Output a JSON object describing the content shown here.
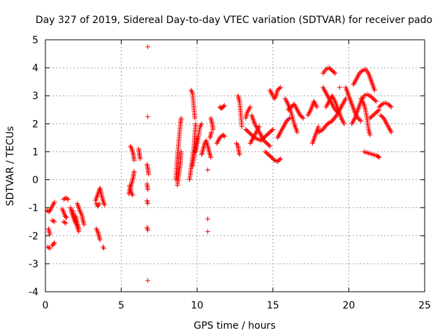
{
  "chart_data": {
    "type": "scatter",
    "title": "Day 327 of 2019, Sidereal Day-to-day VTEC variation (SDTVAR) for receiver pado",
    "xlabel": "GPS time / hours",
    "ylabel": "SDTVAR / TECUs",
    "xlim": [
      0,
      25
    ],
    "ylim": [
      -4,
      5
    ],
    "grid": true,
    "marker": "+",
    "marker_color": "#ff0000",
    "x_ticks": [
      {
        "value": 0,
        "label": "0"
      },
      {
        "value": 5,
        "label": "5"
      },
      {
        "value": 10,
        "label": "10"
      },
      {
        "value": 15,
        "label": "15"
      },
      {
        "value": 20,
        "label": "20"
      },
      {
        "value": 25,
        "label": "25"
      }
    ],
    "y_ticks": [
      {
        "value": -4,
        "label": "-4"
      },
      {
        "value": -3,
        "label": "-3"
      },
      {
        "value": -2,
        "label": "-2"
      },
      {
        "value": -1,
        "label": "-1"
      },
      {
        "value": 0,
        "label": "0"
      },
      {
        "value": 1,
        "label": "1"
      },
      {
        "value": 2,
        "label": "2"
      },
      {
        "value": 3,
        "label": "3"
      },
      {
        "value": 4,
        "label": "4"
      },
      {
        "value": 5,
        "label": "5"
      }
    ],
    "segments": [
      [
        [
          0.1,
          -1.1
        ],
        [
          0.25,
          -1.15
        ],
        [
          0.45,
          -0.95
        ],
        [
          0.6,
          -0.8
        ]
      ],
      [
        [
          0.2,
          -1.75
        ],
        [
          0.3,
          -1.95
        ]
      ],
      [
        [
          0.15,
          -2.4
        ],
        [
          0.3,
          -2.45
        ]
      ],
      [
        [
          0.45,
          -2.35
        ],
        [
          0.6,
          -2.25
        ]
      ],
      [
        [
          0.45,
          -1.45
        ],
        [
          0.6,
          -1.5
        ]
      ],
      [
        [
          1.1,
          -1.05
        ],
        [
          1.2,
          -1.15
        ],
        [
          1.3,
          -1.3
        ],
        [
          1.4,
          -1.35
        ]
      ],
      [
        [
          1.2,
          -0.7
        ],
        [
          1.35,
          -0.65
        ],
        [
          1.5,
          -0.7
        ]
      ],
      [
        [
          1.2,
          -1.5
        ],
        [
          1.35,
          -1.55
        ]
      ],
      [
        [
          1.65,
          -1.0
        ],
        [
          1.75,
          -1.2
        ],
        [
          1.85,
          -1.35
        ],
        [
          1.95,
          -1.5
        ],
        [
          2.05,
          -1.6
        ],
        [
          2.15,
          -1.75
        ],
        [
          2.2,
          -1.85
        ]
      ],
      [
        [
          1.8,
          -1.1
        ],
        [
          1.9,
          -1.3
        ],
        [
          2.0,
          -1.5
        ]
      ],
      [
        [
          2.1,
          -0.85
        ],
        [
          2.2,
          -1.0
        ],
        [
          2.3,
          -1.15
        ],
        [
          2.4,
          -1.25
        ],
        [
          2.45,
          -1.4
        ],
        [
          2.55,
          -1.6
        ]
      ],
      [
        [
          2.0,
          -1.3
        ],
        [
          2.1,
          -1.55
        ],
        [
          2.2,
          -1.75
        ]
      ],
      [
        [
          3.3,
          -0.75
        ],
        [
          3.4,
          -0.6
        ],
        [
          3.5,
          -0.45
        ],
        [
          3.6,
          -0.3
        ],
        [
          3.7,
          -0.55
        ],
        [
          3.8,
          -0.75
        ],
        [
          3.9,
          -0.9
        ]
      ],
      [
        [
          3.35,
          -0.85
        ],
        [
          3.45,
          -0.95
        ],
        [
          3.55,
          -0.85
        ]
      ],
      [
        [
          3.35,
          -1.75
        ],
        [
          3.45,
          -1.85
        ],
        [
          3.55,
          -2.05
        ],
        [
          3.6,
          -2.15
        ]
      ],
      [
        [
          3.8,
          -2.4
        ],
        [
          3.85,
          -2.45
        ]
      ],
      [
        [
          5.5,
          -0.5
        ],
        [
          5.6,
          -0.3
        ],
        [
          5.7,
          -0.1
        ],
        [
          5.8,
          0.1
        ],
        [
          5.85,
          0.3
        ]
      ],
      [
        [
          5.6,
          1.2
        ],
        [
          5.7,
          1.1
        ],
        [
          5.8,
          0.9
        ],
        [
          5.85,
          0.7
        ]
      ],
      [
        [
          5.55,
          -0.2
        ],
        [
          5.65,
          -0.45
        ],
        [
          5.75,
          -0.55
        ]
      ],
      [
        [
          6.15,
          1.1
        ],
        [
          6.2,
          0.9
        ],
        [
          6.25,
          0.75
        ]
      ],
      [
        [
          6.75,
          4.75
        ]
      ],
      [
        [
          6.75,
          2.25
        ]
      ],
      [
        [
          6.7,
          0.55
        ],
        [
          6.75,
          0.4
        ],
        [
          6.8,
          0.2
        ]
      ],
      [
        [
          6.7,
          -0.15
        ],
        [
          6.75,
          -0.35
        ]
      ],
      [
        [
          6.7,
          -0.75
        ],
        [
          6.75,
          -0.85
        ]
      ],
      [
        [
          6.7,
          -1.7
        ],
        [
          6.75,
          -1.8
        ]
      ],
      [
        [
          6.75,
          -3.6
        ]
      ],
      [
        [
          8.6,
          0.0
        ],
        [
          8.65,
          0.4
        ],
        [
          8.7,
          0.8
        ],
        [
          8.75,
          1.1
        ],
        [
          8.8,
          1.4
        ],
        [
          8.85,
          1.7
        ],
        [
          8.9,
          2.0
        ],
        [
          8.95,
          2.2
        ]
      ],
      [
        [
          8.7,
          -0.2
        ],
        [
          8.8,
          0.2
        ],
        [
          8.9,
          0.6
        ],
        [
          8.95,
          1.0
        ]
      ],
      [
        [
          9.5,
          0.0
        ],
        [
          9.6,
          0.4
        ],
        [
          9.7,
          0.8
        ],
        [
          9.8,
          1.2
        ],
        [
          9.85,
          1.6
        ],
        [
          9.9,
          2.0
        ]
      ],
      [
        [
          9.6,
          3.2
        ],
        [
          9.7,
          3.1
        ],
        [
          9.75,
          2.8
        ],
        [
          9.8,
          2.5
        ],
        [
          9.85,
          2.2
        ]
      ],
      [
        [
          9.9,
          1.0
        ],
        [
          10.0,
          1.3
        ],
        [
          10.1,
          1.6
        ],
        [
          10.2,
          1.9
        ],
        [
          10.3,
          2.0
        ]
      ],
      [
        [
          9.7,
          0.5
        ],
        [
          9.8,
          0.8
        ],
        [
          9.9,
          1.2
        ],
        [
          10.0,
          1.5
        ]
      ],
      [
        [
          10.3,
          0.9
        ],
        [
          10.4,
          1.1
        ],
        [
          10.5,
          1.3
        ],
        [
          10.6,
          1.4
        ],
        [
          10.7,
          1.2
        ],
        [
          10.8,
          1.0
        ],
        [
          10.9,
          0.8
        ]
      ],
      [
        [
          10.7,
          0.35
        ]
      ],
      [
        [
          10.7,
          -1.4
        ]
      ],
      [
        [
          10.7,
          -1.85
        ]
      ],
      [
        [
          10.9,
          2.2
        ],
        [
          11.0,
          2.0
        ],
        [
          11.05,
          1.8
        ]
      ],
      [
        [
          10.85,
          1.5
        ],
        [
          10.95,
          1.7
        ]
      ],
      [
        [
          11.5,
          2.6
        ],
        [
          11.6,
          2.55
        ],
        [
          11.7,
          2.6
        ],
        [
          11.8,
          2.65
        ]
      ],
      [
        [
          11.3,
          1.3
        ],
        [
          11.5,
          1.5
        ],
        [
          11.7,
          1.6
        ],
        [
          11.8,
          1.55
        ]
      ],
      [
        [
          12.7,
          3.0
        ],
        [
          12.8,
          2.8
        ],
        [
          12.85,
          2.5
        ],
        [
          12.9,
          2.2
        ],
        [
          12.95,
          1.9
        ]
      ],
      [
        [
          12.6,
          1.3
        ],
        [
          12.7,
          1.2
        ],
        [
          12.75,
          1.0
        ],
        [
          12.8,
          0.9
        ]
      ],
      [
        [
          13.2,
          2.2
        ],
        [
          13.3,
          2.4
        ],
        [
          13.4,
          2.5
        ],
        [
          13.5,
          2.6
        ]
      ],
      [
        [
          13.2,
          1.8
        ],
        [
          13.4,
          1.7
        ],
        [
          13.6,
          1.6
        ],
        [
          13.8,
          1.5
        ],
        [
          14.0,
          1.45
        ],
        [
          14.2,
          1.4
        ],
        [
          14.4,
          1.5
        ],
        [
          14.6,
          1.6
        ],
        [
          14.8,
          1.7
        ],
        [
          15.0,
          1.8
        ]
      ],
      [
        [
          13.6,
          2.3
        ],
        [
          13.8,
          2.0
        ],
        [
          14.0,
          1.8
        ],
        [
          14.2,
          1.6
        ],
        [
          14.4,
          1.4
        ],
        [
          14.6,
          1.3
        ],
        [
          14.8,
          1.2
        ]
      ],
      [
        [
          13.5,
          1.3
        ],
        [
          13.7,
          1.5
        ],
        [
          13.9,
          1.7
        ],
        [
          14.1,
          1.9
        ]
      ],
      [
        [
          14.5,
          1.0
        ],
        [
          14.7,
          0.9
        ],
        [
          14.9,
          0.8
        ],
        [
          15.1,
          0.7
        ],
        [
          15.3,
          0.65
        ],
        [
          15.5,
          0.75
        ]
      ],
      [
        [
          14.8,
          3.2
        ],
        [
          14.9,
          3.1
        ],
        [
          15.0,
          3.0
        ],
        [
          15.1,
          2.9
        ],
        [
          15.2,
          3.0
        ],
        [
          15.3,
          3.2
        ],
        [
          15.5,
          3.3
        ]
      ],
      [
        [
          15.3,
          1.5
        ],
        [
          15.5,
          1.7
        ],
        [
          15.7,
          1.9
        ],
        [
          15.9,
          2.1
        ],
        [
          16.1,
          2.2
        ]
      ],
      [
        [
          16.0,
          2.5
        ],
        [
          16.2,
          2.6
        ],
        [
          16.4,
          2.7
        ],
        [
          16.6,
          2.5
        ],
        [
          16.8,
          2.3
        ],
        [
          17.0,
          2.2
        ]
      ],
      [
        [
          15.8,
          2.9
        ],
        [
          16.0,
          2.7
        ],
        [
          16.2,
          2.4
        ],
        [
          16.4,
          2.0
        ],
        [
          16.6,
          1.7
        ]
      ],
      [
        [
          17.3,
          2.3
        ],
        [
          17.5,
          2.5
        ],
        [
          17.7,
          2.8
        ],
        [
          17.9,
          2.6
        ]
      ],
      [
        [
          17.6,
          1.3
        ],
        [
          17.8,
          1.6
        ],
        [
          18.0,
          1.9
        ]
      ],
      [
        [
          18.3,
          3.8
        ],
        [
          18.5,
          3.95
        ],
        [
          18.7,
          4.0
        ],
        [
          18.9,
          3.9
        ],
        [
          19.1,
          3.8
        ]
      ],
      [
        [
          18.3,
          3.3
        ],
        [
          18.5,
          3.1
        ],
        [
          18.7,
          2.9
        ],
        [
          18.9,
          2.7
        ],
        [
          19.1,
          2.5
        ],
        [
          19.3,
          2.4
        ]
      ],
      [
        [
          18.0,
          1.7
        ],
        [
          18.3,
          1.8
        ],
        [
          18.6,
          2.0
        ],
        [
          18.9,
          2.1
        ],
        [
          19.2,
          2.3
        ],
        [
          19.5,
          2.6
        ],
        [
          19.8,
          2.9
        ]
      ],
      [
        [
          18.5,
          2.6
        ],
        [
          18.7,
          2.8
        ],
        [
          18.9,
          3.0
        ],
        [
          19.1,
          2.8
        ],
        [
          19.3,
          2.5
        ],
        [
          19.5,
          2.2
        ],
        [
          19.7,
          2.0
        ]
      ],
      [
        [
          19.8,
          3.3
        ],
        [
          20.0,
          3.0
        ],
        [
          20.2,
          2.7
        ],
        [
          20.4,
          2.4
        ],
        [
          20.6,
          2.2
        ],
        [
          20.8,
          2.1
        ]
      ],
      [
        [
          19.4,
          3.3
        ]
      ],
      [
        [
          20.3,
          3.4
        ],
        [
          20.5,
          3.6
        ],
        [
          20.7,
          3.8
        ],
        [
          20.9,
          3.9
        ],
        [
          21.1,
          3.95
        ],
        [
          21.3,
          3.8
        ],
        [
          21.5,
          3.5
        ],
        [
          21.7,
          3.2
        ]
      ],
      [
        [
          20.2,
          2.0
        ],
        [
          20.4,
          2.2
        ],
        [
          20.6,
          2.5
        ],
        [
          20.8,
          2.8
        ],
        [
          21.0,
          3.0
        ],
        [
          21.2,
          3.05
        ],
        [
          21.4,
          3.0
        ],
        [
          21.6,
          2.9
        ],
        [
          21.8,
          2.8
        ]
      ],
      [
        [
          20.8,
          2.9
        ],
        [
          21.0,
          2.7
        ],
        [
          21.1,
          2.5
        ],
        [
          21.2,
          2.2
        ],
        [
          21.3,
          1.8
        ],
        [
          21.4,
          1.6
        ]
      ],
      [
        [
          21.4,
          2.2
        ],
        [
          21.6,
          2.3
        ],
        [
          21.8,
          2.4
        ],
        [
          22.0,
          2.5
        ]
      ],
      [
        [
          21.0,
          1.0
        ],
        [
          21.3,
          0.95
        ],
        [
          21.6,
          0.9
        ],
        [
          21.9,
          0.85
        ],
        [
          22.0,
          0.8
        ]
      ],
      [
        [
          22.0,
          2.6
        ],
        [
          22.2,
          2.7
        ],
        [
          22.4,
          2.75
        ],
        [
          22.6,
          2.7
        ],
        [
          22.8,
          2.6
        ]
      ],
      [
        [
          22.1,
          2.3
        ],
        [
          22.3,
          2.2
        ],
        [
          22.5,
          2.0
        ],
        [
          22.7,
          1.8
        ],
        [
          22.8,
          1.7
        ]
      ]
    ]
  }
}
